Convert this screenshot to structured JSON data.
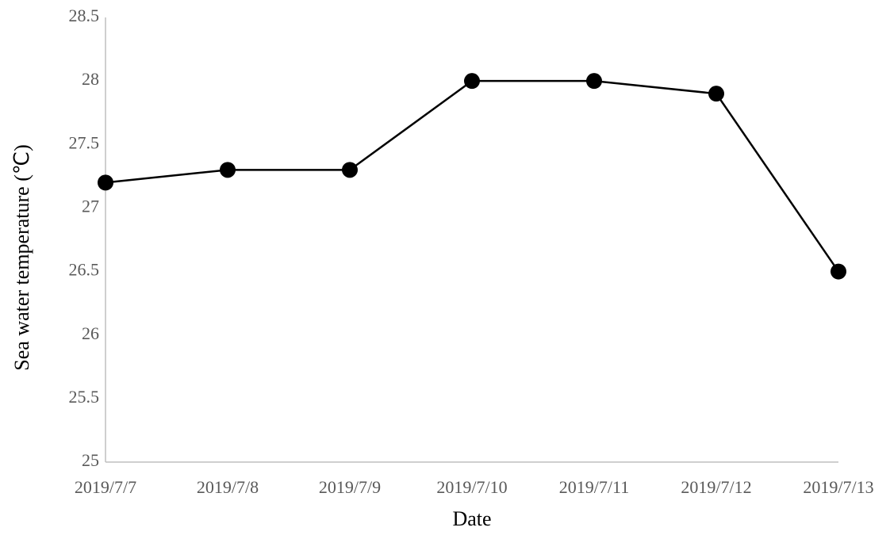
{
  "chart_data": {
    "type": "line",
    "x_label": "Date",
    "y_label": "Sea water temperature (℃)",
    "categories": [
      "2019/7/7",
      "2019/7/8",
      "2019/7/9",
      "2019/7/10",
      "2019/7/11",
      "2019/7/12",
      "2019/7/13"
    ],
    "series": [
      {
        "name": "Sea water temperature",
        "color": "#000000",
        "values": [
          27.2,
          27.3,
          27.3,
          28,
          28,
          27.9,
          26.5
        ]
      }
    ],
    "ylim": [
      25,
      28.5
    ],
    "yticks": [
      25,
      25.5,
      26,
      26.5,
      27,
      27.5,
      28,
      28.5
    ],
    "grid": false
  }
}
